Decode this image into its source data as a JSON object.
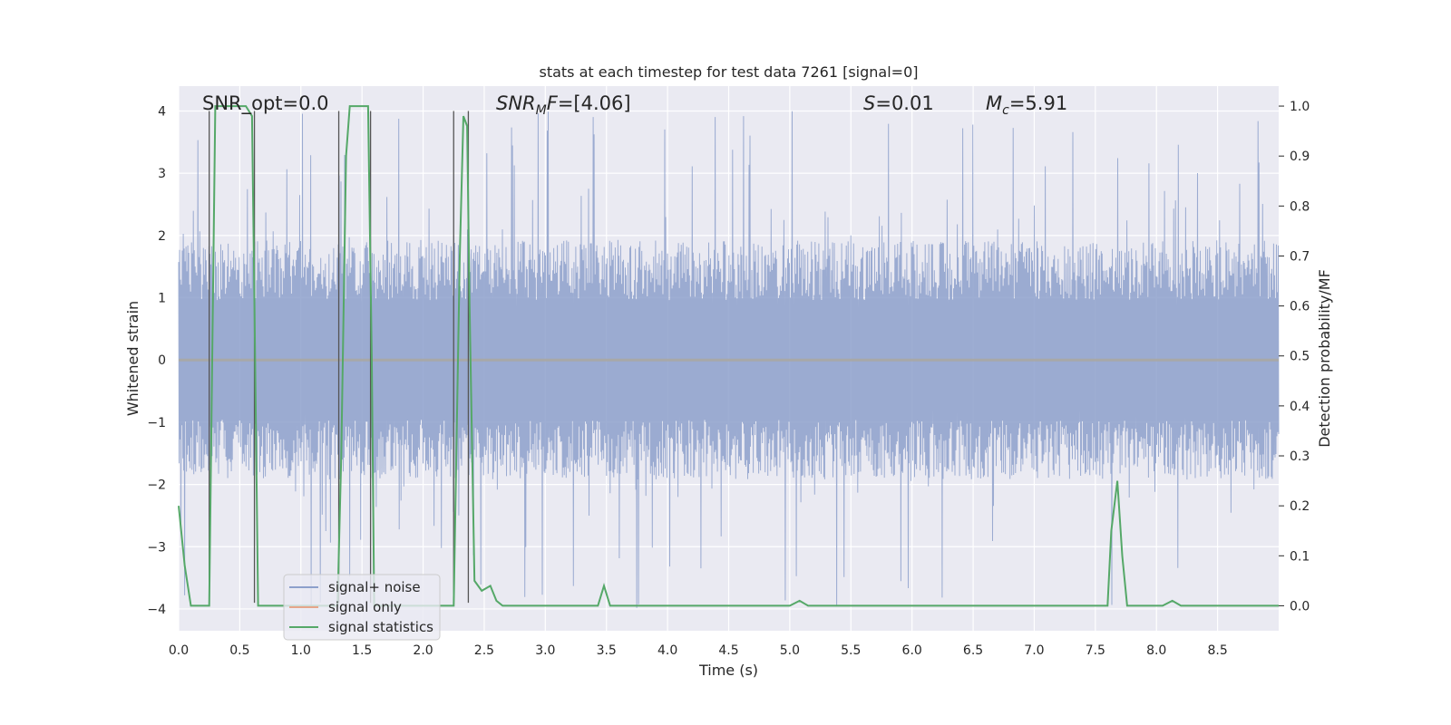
{
  "chart_data": {
    "type": "line",
    "title": "stats at each timestep for test data 7261 [signal=0]",
    "xlabel": "Time (s)",
    "ylabel": "Whitened strain",
    "y2label": "Detection probability/MF",
    "xlim": [
      0,
      9.0
    ],
    "ylim": [
      -4.35,
      4.4
    ],
    "y2lim": [
      -0.05,
      1.04
    ],
    "x_ticks": [
      "0.0",
      "0.5",
      "1.0",
      "1.5",
      "2.0",
      "2.5",
      "3.0",
      "3.5",
      "4.0",
      "4.5",
      "5.0",
      "5.5",
      "6.0",
      "6.5",
      "7.0",
      "7.5",
      "8.0",
      "8.5"
    ],
    "y_ticks": [
      "4",
      "3",
      "2",
      "1",
      "0",
      "−1",
      "−2",
      "−3",
      "−4"
    ],
    "y2_ticks": [
      "1.0",
      "0.9",
      "0.8",
      "0.7",
      "0.6",
      "0.5",
      "0.4",
      "0.3",
      "0.2",
      "0.1",
      "0.0"
    ],
    "grid": true,
    "legend_position": "lower-left",
    "annotations": {
      "snr_opt": "SNR_opt=0.0",
      "snr_mf_main": "SNR",
      "snr_mf_sub": "M",
      "snr_mf_rest": "F=[4.06]",
      "s_main": "S",
      "s_rest": "=0.01",
      "mc_main": "M",
      "mc_sub": "c",
      "mc_rest": "=5.91"
    },
    "series": [
      {
        "name": "signal+ noise",
        "color": "#8da0cb",
        "noise_band": {
          "typical_abs": 1.6,
          "max_abs": 4.0
        }
      },
      {
        "name": "signal only",
        "color": "#e5a58a",
        "values": []
      },
      {
        "name": "signal statistics",
        "color": "#55a868",
        "x": [
          0.0,
          0.05,
          0.1,
          0.22,
          0.25,
          0.3,
          0.55,
          0.6,
          0.62,
          0.65,
          0.7,
          1.3,
          1.33,
          1.37,
          1.4,
          1.55,
          1.58,
          1.6,
          2.25,
          2.3,
          2.33,
          2.36,
          2.38,
          2.42,
          2.48,
          2.55,
          2.6,
          2.65,
          2.7,
          3.43,
          3.48,
          3.53,
          3.6,
          5.0,
          5.08,
          5.15,
          7.3,
          7.4,
          7.6,
          7.63,
          7.68,
          7.72,
          7.76,
          8.05,
          8.13,
          8.2,
          9.0
        ],
        "values": [
          0.2,
          0.08,
          0.0,
          0.0,
          0.0,
          1.0,
          1.0,
          0.98,
          0.6,
          0.0,
          0.0,
          0.0,
          0.3,
          0.9,
          1.0,
          1.0,
          0.5,
          0.0,
          0.0,
          0.7,
          0.98,
          0.96,
          0.6,
          0.05,
          0.03,
          0.04,
          0.01,
          0.0,
          0.0,
          0.0,
          0.04,
          0.0,
          0.0,
          0.0,
          0.01,
          0.0,
          0.0,
          0.0,
          0.0,
          0.15,
          0.25,
          0.1,
          0.0,
          0.0,
          0.01,
          0.0,
          0.0
        ]
      }
    ],
    "vertical_lines_x": [
      0.25,
      0.62,
      1.31,
      1.57,
      2.25,
      2.37
    ]
  }
}
